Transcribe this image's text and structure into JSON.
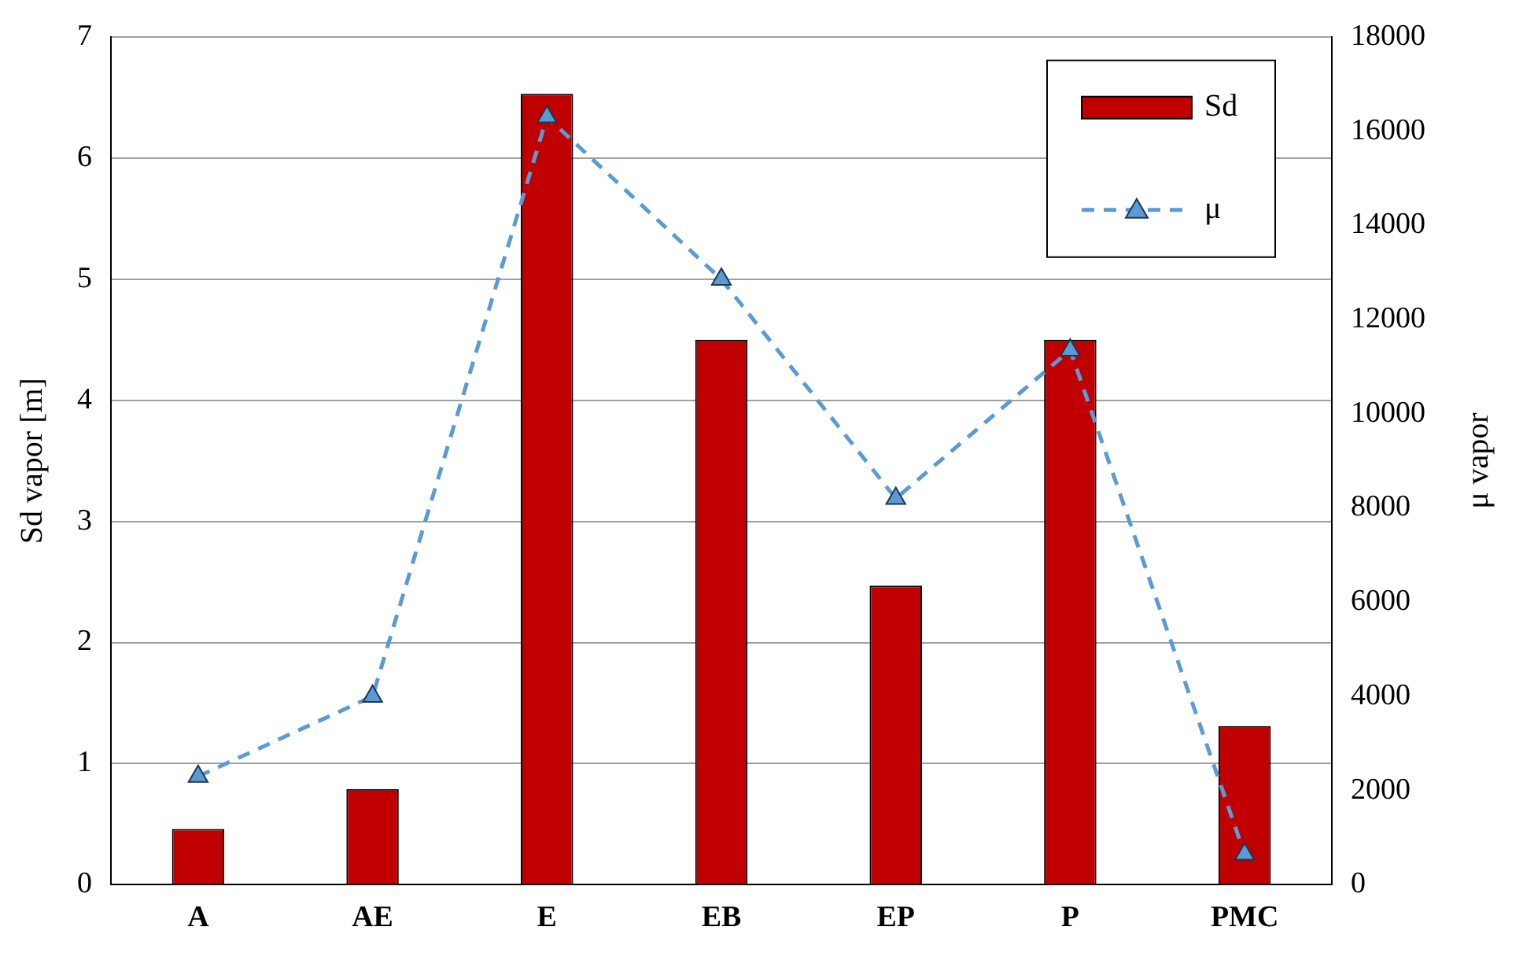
{
  "chart_data": {
    "type": "bar",
    "ylabel": "Sd vapor [m]",
    "y2label": "μ vapor",
    "categories": [
      "A",
      "AE",
      "E",
      "EB",
      "EP",
      "P",
      "PMC"
    ],
    "series": [
      {
        "name": "Sd",
        "color": "#c00000",
        "values": [
          0.46,
          0.79,
          6.53,
          4.5,
          2.47,
          4.5,
          1.31
        ]
      },
      {
        "name": "μ",
        "type": "line",
        "axis": "y2",
        "color": "#5b9bd5",
        "marker": "triangle",
        "line_style": "dashed",
        "values": [
          2300,
          4000,
          16300,
          12850,
          8200,
          11350,
          650
        ]
      }
    ],
    "ylim": [
      0,
      7
    ],
    "yticks": [
      0,
      1,
      2,
      3,
      4,
      5,
      6,
      7
    ],
    "y2lim": [
      0,
      18000
    ],
    "y2ticks": [
      0,
      2000,
      4000,
      6000,
      8000,
      10000,
      12000,
      14000,
      16000,
      18000
    ],
    "grid": "y",
    "legend": "top right"
  }
}
